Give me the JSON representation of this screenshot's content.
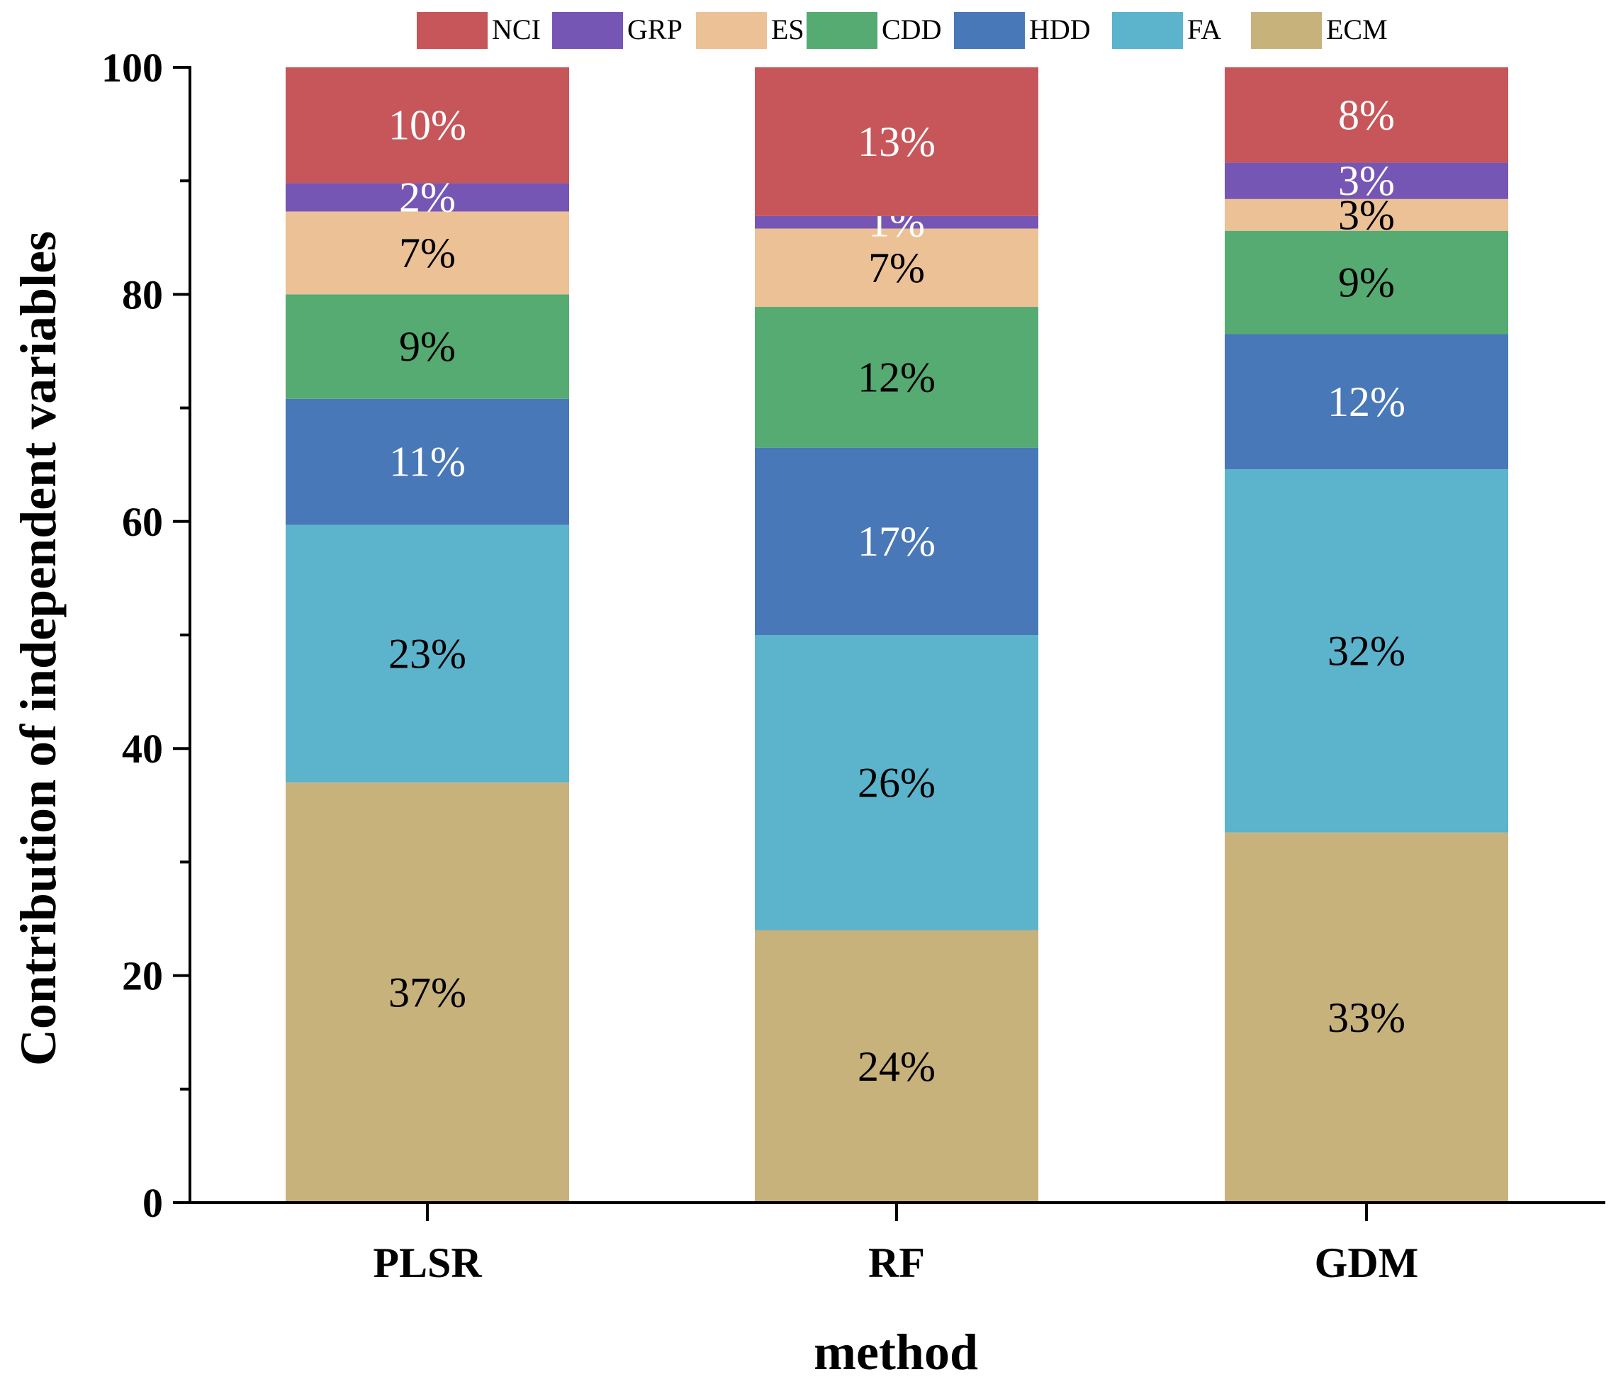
{
  "chart_data": {
    "type": "bar",
    "stacked": true,
    "title": "",
    "xlabel": "method",
    "ylabel": "Contribution of independent variables",
    "ylim": [
      0,
      100
    ],
    "yticks": [
      "0",
      "20",
      "40",
      "60",
      "80",
      "100"
    ],
    "categories": [
      "PLSR",
      "RF",
      "GDM"
    ],
    "legend_position": "top",
    "series": [
      {
        "name": "ECM",
        "color": "#c8b27c",
        "label_color": "#000000",
        "values": [
          37,
          24,
          32.6
        ],
        "labels": [
          "37%",
          "24%",
          "33%"
        ]
      },
      {
        "name": "FA",
        "color": "#5bb3cc",
        "label_color": "#000000",
        "values": [
          22.7,
          26,
          32
        ],
        "labels": [
          "23%",
          "26%",
          "32%"
        ]
      },
      {
        "name": "HDD",
        "color": "#4878b8",
        "label_color": "#ffffff",
        "values": [
          11.1,
          16.5,
          11.9
        ],
        "labels": [
          "11%",
          "17%",
          "12%"
        ]
      },
      {
        "name": "CDD",
        "color": "#55ab72",
        "label_color": "#000000",
        "values": [
          9.2,
          12.4,
          9.1
        ],
        "labels": [
          "9%",
          "12%",
          "9%"
        ]
      },
      {
        "name": "ES",
        "color": "#ecc196",
        "label_color": "#000000",
        "values": [
          7.3,
          6.9,
          2.8
        ],
        "labels": [
          "7%",
          "7%",
          "3%"
        ]
      },
      {
        "name": "GRP",
        "color": "#7656b5",
        "label_color": "#ffffff",
        "values": [
          2.5,
          1.1,
          3.2
        ],
        "labels": [
          "2%",
          "1%",
          "3%"
        ]
      },
      {
        "name": "NCI",
        "color": "#c7565a",
        "label_color": "#ffffff",
        "values": [
          10.2,
          13.1,
          8.4
        ],
        "labels": [
          "10%",
          "13%",
          "8%"
        ]
      }
    ],
    "legend_order": [
      "NCI",
      "GRP",
      "ES",
      "CDD",
      "HDD",
      "FA",
      "ECM"
    ]
  }
}
